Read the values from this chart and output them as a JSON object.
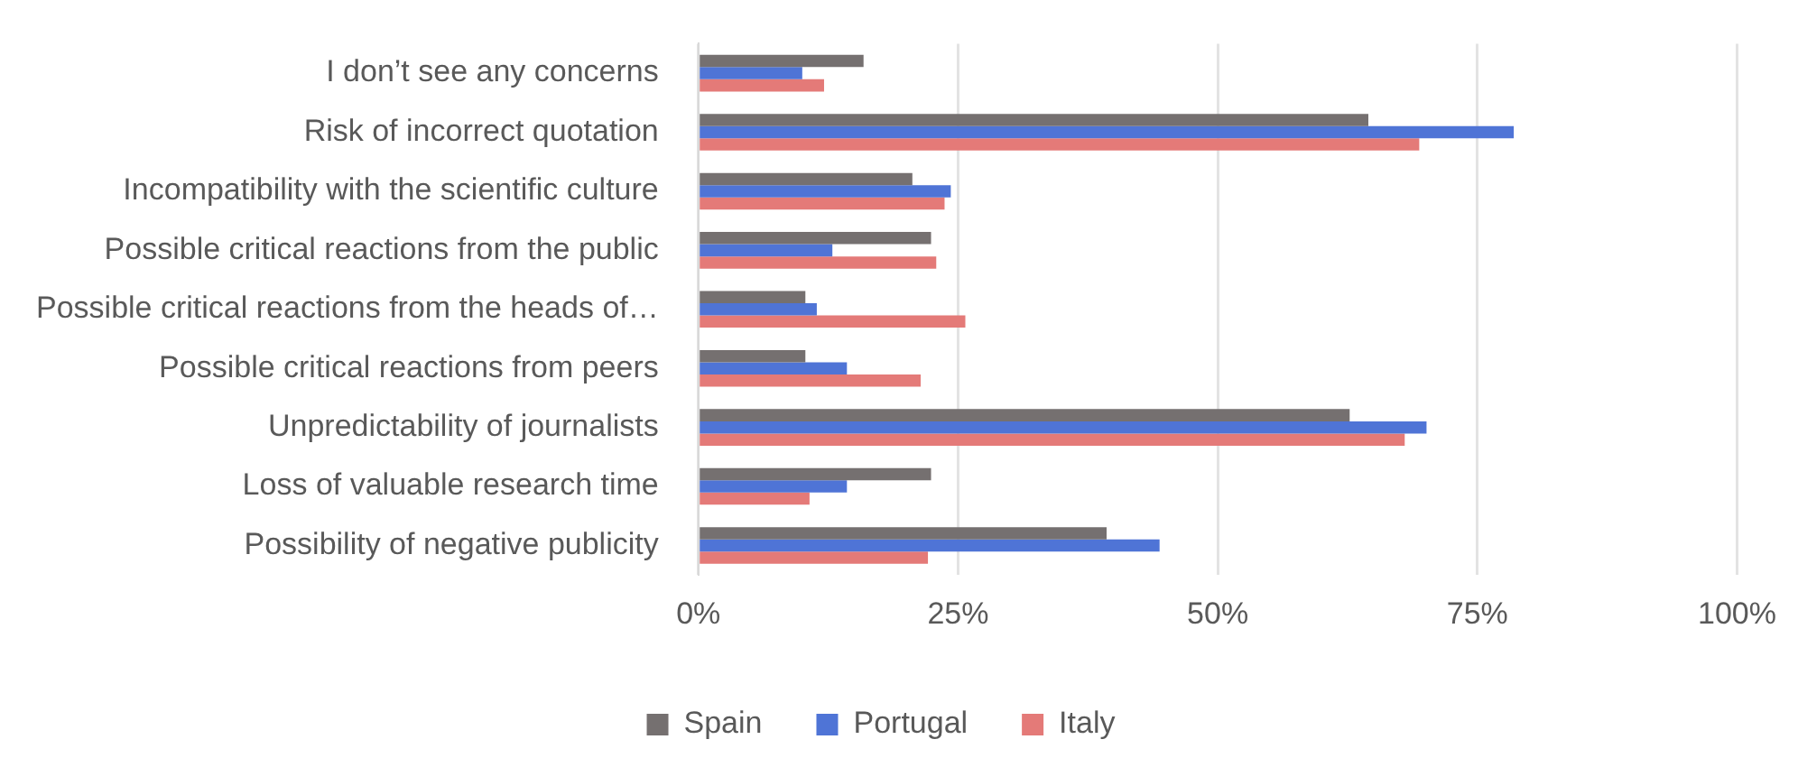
{
  "chart_data": {
    "type": "bar",
    "orientation": "horizontal",
    "categories": [
      "I don’t see any concerns",
      "Risk of incorrect quotation",
      "Incompatibility with the scientific culture",
      "Possible critical reactions from the public",
      "Possible critical reactions from the heads of…",
      "Possible critical reactions from peers",
      "Unpredictability of journalists",
      "Loss of valuable research time",
      "Possibility of negative publicity"
    ],
    "series": [
      {
        "name": "Spain",
        "color": "#757070",
        "values": [
          15.9,
          64.5,
          20.6,
          22.4,
          10.3,
          10.3,
          62.7,
          22.4,
          39.3
        ]
      },
      {
        "name": "Portugal",
        "color": "#4f74d6",
        "values": [
          10.0,
          78.5,
          24.3,
          12.9,
          11.4,
          14.3,
          70.1,
          14.3,
          44.4
        ]
      },
      {
        "name": "Italy",
        "color": "#e47a78",
        "values": [
          12.1,
          69.4,
          23.7,
          22.9,
          25.7,
          21.4,
          68.0,
          10.7,
          22.1
        ]
      }
    ],
    "xlim": [
      0,
      100
    ],
    "xticks": [
      {
        "value": 0,
        "label": "0%"
      },
      {
        "value": 25,
        "label": "25%"
      },
      {
        "value": 50,
        "label": "50%"
      },
      {
        "value": 75,
        "label": "75%"
      },
      {
        "value": 100,
        "label": "100%"
      }
    ],
    "grid": "x",
    "legend": "bottom"
  }
}
